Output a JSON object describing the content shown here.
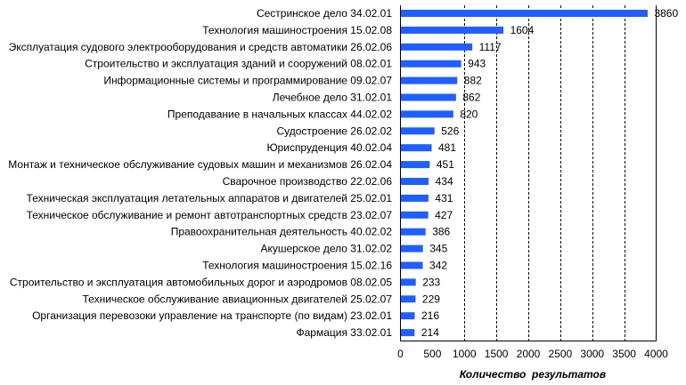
{
  "chart_data": {
    "type": "bar",
    "orientation": "horizontal",
    "title": "",
    "xlabel": "Количество  результатов",
    "ylabel": "",
    "xlim": [
      0,
      4000
    ],
    "xticks": [
      "0",
      "500",
      "1000",
      "1500",
      "2000",
      "2500",
      "3000",
      "3500",
      "4000"
    ],
    "grid": "vertical dashed",
    "bar_color": "#1f5fff",
    "categories": [
      "Сестринское дело 34.02.01",
      "Технология машиностроения 15.02.08",
      "Эксплуатация судового электрооборудования и средств автоматики 26.02.06",
      "Строительство и эксплуатация зданий и сооружений 08.02.01",
      "Информационные системы и программирование 09.02.07",
      "Лечебное дело 31.02.01",
      "Преподавание в начальных классах 44.02.02",
      "Судостроение 26.02.02",
      "Юриспруденция 40.02.04",
      "Монтаж и техническое обслуживание судовых  машин и механизмов 26.02.04",
      "Сварочное производство 22.02.06",
      "Техническая эксплуатация летательных аппаратов и двигателей 25.02.01",
      "Техническое обслуживание и ремонт автотранспортных средств 23.02.07",
      "Правоохранительная деятельность 40.02.02",
      "Акушерское дело 31.02.02",
      "Технология машиностроения 15.02.16",
      "Строительство и эксплуатация автомобильных дорог и аэродромов 08.02.05",
      "Техническое обслуживание авиационных двигателей 25.02.07",
      "Организация перевозоки управление на транспорте (по видам) 23.02.01",
      "Фармация 33.02.01"
    ],
    "values": [
      3860,
      1604,
      1117,
      943,
      882,
      862,
      820,
      526,
      481,
      451,
      434,
      431,
      427,
      386,
      345,
      342,
      233,
      229,
      216,
      214
    ]
  }
}
